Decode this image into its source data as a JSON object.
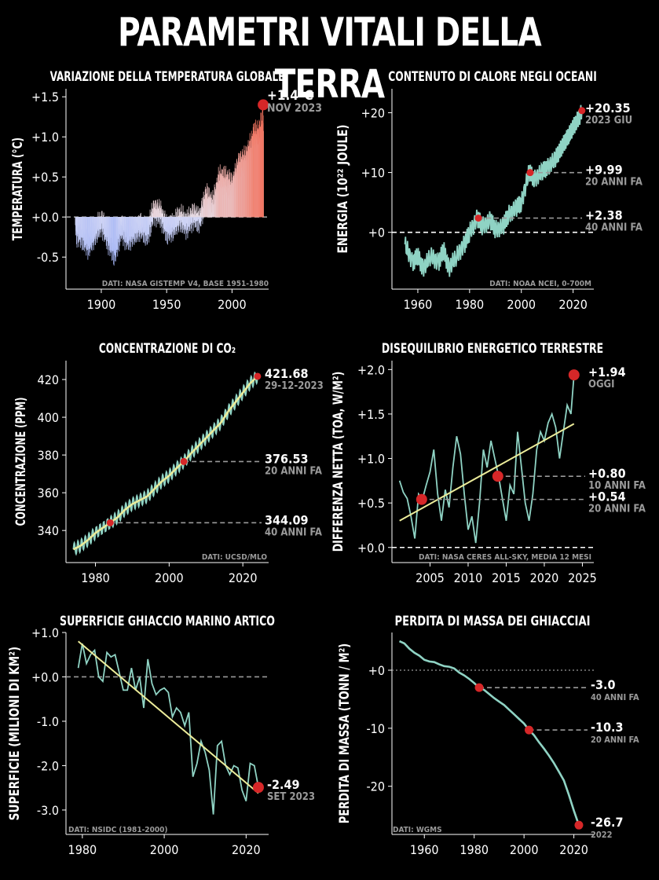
{
  "title": "PARAMETRI VITALI DELLA TERRA",
  "colors": {
    "line": "#8fd3c4",
    "marker": "#d62728",
    "trend": "#ecec9a",
    "neg": "#6b8cf5",
    "pos": "#f29678",
    "dash": "#9a9a9a"
  },
  "chart_data": [
    {
      "id": "temp",
      "type": "bar",
      "title": "VARIAZIONE DELLA TEMPERATURA GLOBALE",
      "ylabel": "TEMPERATURA (°C)",
      "xlim": [
        1873,
        2028
      ],
      "ylim": [
        -0.9,
        1.6
      ],
      "xticks": [
        1900,
        1950,
        2000
      ],
      "yticks": [
        -0.5,
        0.0,
        0.5,
        1.0,
        1.5
      ],
      "ytick_labels": [
        "-0.5",
        "+0.0",
        "+0.5",
        "+1.0",
        "+1.5"
      ],
      "baseline": 0,
      "annual_anomaly": [
        [
          1880,
          -0.16
        ],
        [
          1885,
          -0.22
        ],
        [
          1890,
          -0.36
        ],
        [
          1895,
          -0.22
        ],
        [
          1900,
          -0.08
        ],
        [
          1905,
          -0.27
        ],
        [
          1910,
          -0.43
        ],
        [
          1915,
          -0.13
        ],
        [
          1920,
          -0.27
        ],
        [
          1925,
          -0.21
        ],
        [
          1930,
          -0.14
        ],
        [
          1935,
          -0.2
        ],
        [
          1940,
          0.1
        ],
        [
          1945,
          0.06
        ],
        [
          1950,
          -0.17
        ],
        [
          1955,
          -0.14
        ],
        [
          1960,
          -0.03
        ],
        [
          1965,
          -0.1
        ],
        [
          1970,
          0.03
        ],
        [
          1975,
          -0.01
        ],
        [
          1980,
          0.26
        ],
        [
          1985,
          0.12
        ],
        [
          1990,
          0.45
        ],
        [
          1995,
          0.45
        ],
        [
          2000,
          0.39
        ],
        [
          2005,
          0.68
        ],
        [
          2010,
          0.72
        ],
        [
          2015,
          0.9
        ],
        [
          2016,
          1.01
        ],
        [
          2020,
          1.01
        ],
        [
          2023,
          1.17
        ]
      ],
      "latest": {
        "year": 2023.85,
        "value": 1.4
      },
      "annotations": [
        {
          "value": "+1.4°C",
          "label": "NOV 2023"
        }
      ],
      "source": "DATI: NASA GISTEMP V4, BASE 1951-1980"
    },
    {
      "id": "ocean",
      "type": "line",
      "title": "CONTENUTO DI CALORE NEGLI OCEANI",
      "ylabel": "ENERGIA (10²² JOULE)",
      "xlim": [
        1950,
        2028
      ],
      "ylim": [
        -9.5,
        24
      ],
      "xticks": [
        1960,
        1980,
        2000,
        2020
      ],
      "yticks": [
        0,
        10,
        20
      ],
      "ytick_labels": [
        "+0",
        "+10",
        "+20"
      ],
      "baseline": 0,
      "series": [
        [
          1955,
          -2
        ],
        [
          1958,
          -5
        ],
        [
          1960,
          -4
        ],
        [
          1962,
          -6
        ],
        [
          1965,
          -4
        ],
        [
          1968,
          -5
        ],
        [
          1970,
          -3
        ],
        [
          1972,
          -6
        ],
        [
          1975,
          -4
        ],
        [
          1978,
          -2
        ],
        [
          1980,
          0
        ],
        [
          1983,
          2.38
        ],
        [
          1985,
          1
        ],
        [
          1988,
          2
        ],
        [
          1990,
          0.5
        ],
        [
          1993,
          1
        ],
        [
          1995,
          3
        ],
        [
          1998,
          4
        ],
        [
          2000,
          5
        ],
        [
          2003,
          9.99
        ],
        [
          2005,
          9
        ],
        [
          2008,
          10
        ],
        [
          2010,
          11
        ],
        [
          2013,
          12
        ],
        [
          2015,
          14
        ],
        [
          2017,
          15
        ],
        [
          2019,
          17
        ],
        [
          2021,
          18
        ],
        [
          2023.4,
          20.35
        ]
      ],
      "markers": [
        {
          "x": 2023.4,
          "y": 20.35,
          "value": "+20.35",
          "label": "2023 GIU"
        },
        {
          "x": 2003.4,
          "y": 9.99,
          "value": "+9.99",
          "label": "20 ANNI FA"
        },
        {
          "x": 1983.4,
          "y": 2.38,
          "value": "+2.38",
          "label": "40 ANNI FA"
        }
      ],
      "source": "DATI: NOAA NCEI, 0-700M"
    },
    {
      "id": "co2",
      "type": "line",
      "title": "CONCENTRAZIONE DI CO₂",
      "ylabel": "CONCENTRAZIONE (PPM)",
      "xlim": [
        1972,
        2027
      ],
      "ylim": [
        323,
        430
      ],
      "xticks": [
        1980,
        2000,
        2020
      ],
      "yticks": [
        340,
        360,
        380,
        400,
        420
      ],
      "ytick_labels": [
        "340",
        "360",
        "380",
        "400",
        "420"
      ],
      "series": [
        [
          1974,
          330
        ],
        [
          1976,
          332
        ],
        [
          1978,
          335
        ],
        [
          1980,
          338.7
        ],
        [
          1984,
          344.09
        ],
        [
          1986,
          347
        ],
        [
          1988,
          351
        ],
        [
          1990,
          354
        ],
        [
          1992,
          356
        ],
        [
          1994,
          358
        ],
        [
          1996,
          362
        ],
        [
          1998,
          366
        ],
        [
          2000,
          369
        ],
        [
          2002,
          373
        ],
        [
          2004,
          376.53
        ],
        [
          2006,
          381
        ],
        [
          2008,
          385
        ],
        [
          2010,
          389
        ],
        [
          2012,
          393
        ],
        [
          2014,
          397
        ],
        [
          2016,
          403
        ],
        [
          2018,
          408
        ],
        [
          2020,
          413
        ],
        [
          2022,
          418
        ],
        [
          2023.99,
          421.68
        ]
      ],
      "seasonal_amplitude": 3.2,
      "markers": [
        {
          "x": 2023.99,
          "y": 421.68,
          "value": "421.68",
          "label": "29-12-2023"
        },
        {
          "x": 2003.99,
          "y": 376.53,
          "value": "376.53",
          "label": "20 ANNI FA"
        },
        {
          "x": 1983.99,
          "y": 344.09,
          "value": "344.09",
          "label": "40 ANNI FA"
        }
      ],
      "source": "DATI: UCSD/MLO"
    },
    {
      "id": "eei",
      "type": "line",
      "title": "DISEQUILIBRIO ENERGETICO TERRESTRE",
      "ylabel": "DIFFERENZA NETTA (TOA, W/M²)",
      "xlim": [
        2000,
        2026.5
      ],
      "ylim": [
        -0.17,
        2.1
      ],
      "xticks": [
        2005,
        2010,
        2015,
        2020,
        2025
      ],
      "yticks": [
        0,
        0.5,
        1.0,
        1.5,
        2.0
      ],
      "ytick_labels": [
        "+0.0",
        "+0.5",
        "+1.0",
        "+1.5",
        "+2.0"
      ],
      "baseline": 0,
      "series": [
        [
          2001,
          0.75
        ],
        [
          2001.5,
          0.62
        ],
        [
          2002,
          0.55
        ],
        [
          2002.5,
          0.35
        ],
        [
          2003,
          0.1
        ],
        [
          2003.5,
          0.6
        ],
        [
          2004,
          0.54
        ],
        [
          2004.5,
          0.7
        ],
        [
          2005,
          0.85
        ],
        [
          2005.5,
          1.1
        ],
        [
          2006,
          0.6
        ],
        [
          2006.5,
          0.3
        ],
        [
          2007,
          0.65
        ],
        [
          2007.5,
          0.45
        ],
        [
          2008,
          0.9
        ],
        [
          2008.5,
          1.25
        ],
        [
          2009,
          1.05
        ],
        [
          2009.5,
          0.6
        ],
        [
          2010,
          0.2
        ],
        [
          2010.5,
          0.35
        ],
        [
          2011,
          0.05
        ],
        [
          2011.5,
          0.5
        ],
        [
          2012,
          1.1
        ],
        [
          2012.5,
          0.9
        ],
        [
          2013,
          1.2
        ],
        [
          2013.5,
          1.0
        ],
        [
          2014,
          0.8
        ],
        [
          2014.5,
          0.55
        ],
        [
          2015,
          0.3
        ],
        [
          2015.5,
          0.7
        ],
        [
          2016,
          0.6
        ],
        [
          2016.5,
          1.3
        ],
        [
          2017,
          0.9
        ],
        [
          2017.5,
          0.5
        ],
        [
          2018,
          0.3
        ],
        [
          2018.5,
          0.6
        ],
        [
          2019,
          1.1
        ],
        [
          2019.5,
          1.3
        ],
        [
          2020,
          1.2
        ],
        [
          2020.5,
          1.4
        ],
        [
          2021,
          1.5
        ],
        [
          2021.5,
          1.35
        ],
        [
          2022,
          1.0
        ],
        [
          2022.5,
          1.3
        ],
        [
          2023,
          1.6
        ],
        [
          2023.5,
          1.5
        ],
        [
          2023.9,
          1.94
        ]
      ],
      "trend": [
        [
          2001,
          0.3
        ],
        [
          2023.9,
          1.39
        ]
      ],
      "markers": [
        {
          "x": 2023.9,
          "y": 1.94,
          "value": "+1.94",
          "label": "OGGI"
        },
        {
          "x": 2013.9,
          "y": 0.8,
          "value": "+0.80",
          "label": "10 ANNI FA"
        },
        {
          "x": 2003.9,
          "y": 0.54,
          "value": "+0.54",
          "label": "20 ANNI FA"
        }
      ],
      "source": "DATI: NASA CERES ALL-SKY, MEDIA 12 MESI"
    },
    {
      "id": "ice",
      "type": "line",
      "title": "SUPERFICIE GHIACCIO MARINO ARTICO",
      "ylabel": "SUPERFICIE (MILIONI DI KM²)",
      "xlim": [
        1976,
        2025.5
      ],
      "ylim": [
        -3.55,
        1.0
      ],
      "xticks": [
        1980,
        2000,
        2020
      ],
      "yticks": [
        -3,
        -2,
        -1,
        0,
        1
      ],
      "ytick_labels": [
        "-3.0",
        "-2.0",
        "-1.0",
        "+0.0",
        "+1.0"
      ],
      "baseline": 0,
      "series": [
        [
          1979,
          0.2
        ],
        [
          1980,
          0.75
        ],
        [
          1981,
          0.3
        ],
        [
          1982,
          0.5
        ],
        [
          1983,
          0.6
        ],
        [
          1984,
          0.0
        ],
        [
          1985,
          -0.1
        ],
        [
          1986,
          0.55
        ],
        [
          1987,
          0.45
        ],
        [
          1988,
          0.5
        ],
        [
          1989,
          0.1
        ],
        [
          1990,
          -0.3
        ],
        [
          1991,
          -0.3
        ],
        [
          1992,
          0.2
        ],
        [
          1993,
          -0.3
        ],
        [
          1994,
          0.0
        ],
        [
          1995,
          -0.7
        ],
        [
          1996,
          0.4
        ],
        [
          1997,
          -0.15
        ],
        [
          1998,
          -0.4
        ],
        [
          1999,
          -0.3
        ],
        [
          2000,
          -0.25
        ],
        [
          2001,
          -0.35
        ],
        [
          2002,
          -0.9
        ],
        [
          2003,
          -0.7
        ],
        [
          2004,
          -0.8
        ],
        [
          2005,
          -1.1
        ],
        [
          2006,
          -0.8
        ],
        [
          2007,
          -2.25
        ],
        [
          2008,
          -1.95
        ],
        [
          2009,
          -1.45
        ],
        [
          2010,
          -1.7
        ],
        [
          2011,
          -2.1
        ],
        [
          2012,
          -3.1
        ],
        [
          2013,
          -1.55
        ],
        [
          2014,
          -1.45
        ],
        [
          2015,
          -2.0
        ],
        [
          2016,
          -2.2
        ],
        [
          2017,
          -2.0
        ],
        [
          2018,
          -2.05
        ],
        [
          2019,
          -2.55
        ],
        [
          2020,
          -2.8
        ],
        [
          2021,
          -1.95
        ],
        [
          2022,
          -2.0
        ],
        [
          2023,
          -2.49
        ]
      ],
      "trend": [
        [
          1979,
          0.8
        ],
        [
          2023,
          -2.62
        ]
      ],
      "markers": [
        {
          "x": 2023,
          "y": -2.49,
          "value": "-2.49",
          "label": "SET 2023"
        }
      ],
      "source": "DATI: NSIDC (1981-2000)"
    },
    {
      "id": "glacier",
      "type": "line",
      "title": "PERDITA DI MASSA DEI GHIACCIAI",
      "ylabel": "PERDITA DI MASSA (TONN / M²)",
      "xlim": [
        1947,
        2028
      ],
      "ylim": [
        -28.3,
        6.5
      ],
      "xticks": [
        1960,
        1980,
        2000,
        2020
      ],
      "yticks": [
        -20,
        -10,
        0
      ],
      "ytick_labels": [
        "-20",
        "-10",
        "+0"
      ],
      "baseline": 0,
      "series": [
        [
          1950,
          5.0
        ],
        [
          1952,
          4.6
        ],
        [
          1954,
          3.7
        ],
        [
          1956,
          3.0
        ],
        [
          1958,
          2.5
        ],
        [
          1960,
          1.8
        ],
        [
          1962,
          1.5
        ],
        [
          1964,
          1.4
        ],
        [
          1966,
          1.0
        ],
        [
          1968,
          0.7
        ],
        [
          1970,
          0.6
        ],
        [
          1972,
          0.3
        ],
        [
          1974,
          -0.4
        ],
        [
          1976,
          -0.9
        ],
        [
          1978,
          -1.5
        ],
        [
          1980,
          -2.2
        ],
        [
          1982,
          -3.0
        ],
        [
          1984,
          -3.4
        ],
        [
          1986,
          -4.1
        ],
        [
          1988,
          -4.8
        ],
        [
          1990,
          -5.4
        ],
        [
          1992,
          -6.0
        ],
        [
          1994,
          -6.8
        ],
        [
          1996,
          -7.6
        ],
        [
          1998,
          -8.4
        ],
        [
          2000,
          -9.2
        ],
        [
          2002,
          -10.3
        ],
        [
          2004,
          -11.2
        ],
        [
          2006,
          -12.4
        ],
        [
          2008,
          -13.5
        ],
        [
          2010,
          -14.7
        ],
        [
          2012,
          -16.0
        ],
        [
          2014,
          -17.5
        ],
        [
          2016,
          -19.0
        ],
        [
          2018,
          -21.5
        ],
        [
          2020,
          -24.2
        ],
        [
          2022,
          -26.7
        ]
      ],
      "markers": [
        {
          "x": 2022,
          "y": -26.7,
          "value": "-26.7",
          "label": "2022"
        },
        {
          "x": 2002,
          "y": -10.3,
          "value": "-10.3",
          "label": "20 ANNI FA"
        },
        {
          "x": 1982,
          "y": -3.0,
          "value": "-3.0",
          "label": "40 ANNI FA"
        }
      ],
      "source": "DATI: WGMS"
    }
  ]
}
